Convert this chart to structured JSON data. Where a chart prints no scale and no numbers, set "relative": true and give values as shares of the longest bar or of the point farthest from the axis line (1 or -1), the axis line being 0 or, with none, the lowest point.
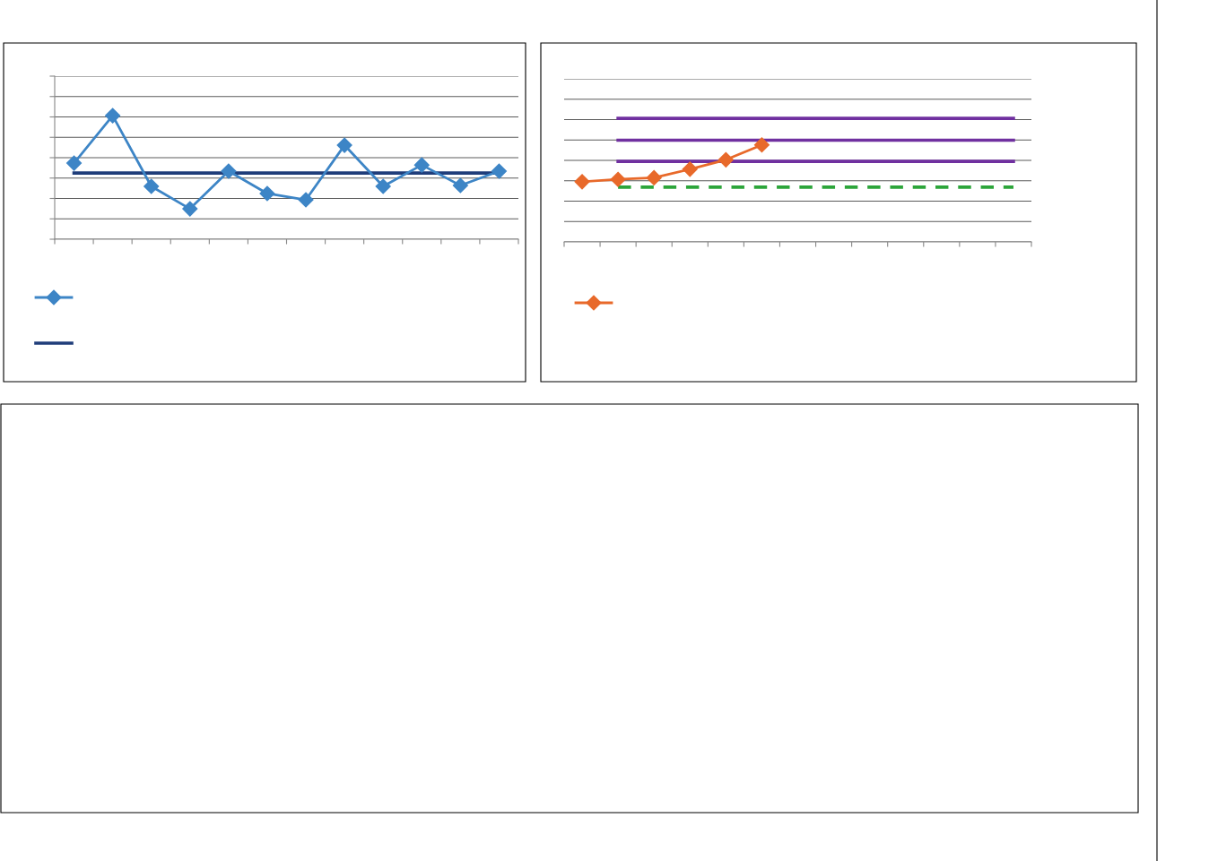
{
  "chart_data": [
    {
      "type": "line",
      "relative": true,
      "categories": [
        null,
        null,
        null,
        null,
        null,
        null,
        null,
        null,
        null,
        null,
        null,
        null
      ],
      "grid": "y",
      "series": [
        {
          "color": "#3d85c6",
          "marker": "diamond",
          "values": [
            0.616,
            1,
            0.428,
            0.246,
            0.551,
            0.37,
            0.319,
            0.761,
            0.428,
            0.601,
            0.435,
            0.551
          ]
        },
        {
          "color": "#1f3d7a",
          "values": [
            0.536,
            0.536,
            0.536,
            0.536,
            0.536,
            0.536,
            0.536,
            0.536,
            0.536,
            0.536,
            0.536,
            0.536
          ]
        }
      ]
    },
    {
      "type": "line",
      "relative": true,
      "categories": [
        null,
        null,
        null,
        null,
        null,
        null,
        null,
        null,
        null,
        null,
        null,
        null,
        null
      ],
      "grid": "y",
      "series": [
        {
          "color": "#7030a0",
          "values": [
            null,
            1,
            1,
            1,
            1,
            1,
            1,
            1,
            1,
            1,
            1,
            1,
            1
          ]
        },
        {
          "color": "#7030a0",
          "values": [
            null,
            0.823,
            0.823,
            0.823,
            0.823,
            0.823,
            0.823,
            0.823,
            0.823,
            0.823,
            0.823,
            0.823,
            0.823
          ]
        },
        {
          "color": "#7030a0",
          "values": [
            null,
            0.652,
            0.652,
            0.652,
            0.652,
            0.652,
            0.652,
            0.652,
            0.652,
            0.652,
            0.652,
            0.652,
            0.652
          ]
        },
        {
          "color": "#2ca53a",
          "line_style": "dashed",
          "values": [
            null,
            0.443,
            0.443,
            0.443,
            0.443,
            0.443,
            0.443,
            0.443,
            0.443,
            0.443,
            0.443,
            0.443,
            0.443
          ]
        },
        {
          "color": "#e8692a",
          "marker": "diamond",
          "values": [
            0.487,
            0.506,
            0.519,
            0.589,
            0.665,
            0.785,
            null,
            null,
            null,
            null,
            null,
            null,
            null
          ]
        }
      ]
    }
  ]
}
